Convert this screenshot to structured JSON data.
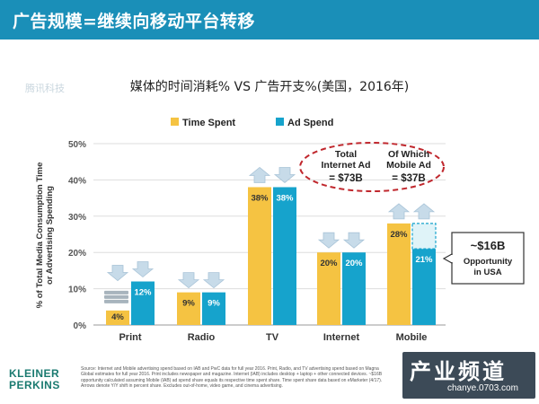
{
  "header": {
    "title": "广告规模=继续向移动平台转移"
  },
  "watermark": "腾讯科技",
  "chart_data": {
    "type": "bar",
    "title": "媒体的时间消耗% VS 广告开支%(美国，2016年)",
    "ylabel": "% of Total Media Consumption Time or Advertising Spending",
    "xlabel": "",
    "ylim": [
      0,
      50
    ],
    "yticks": [
      "0%",
      "10%",
      "20%",
      "30%",
      "40%",
      "50%"
    ],
    "grid": true,
    "legend_position": "top",
    "categories": [
      "Print",
      "Radio",
      "TV",
      "Internet",
      "Mobile"
    ],
    "series": [
      {
        "name": "Time Spent",
        "color": "#f5c342",
        "values": [
          4,
          9,
          38,
          20,
          28
        ],
        "labels": [
          "4%",
          "9%",
          "38%",
          "20%",
          "28%"
        ]
      },
      {
        "name": "Ad Spend",
        "color": "#16a3cc",
        "values": [
          12,
          9,
          38,
          20,
          21
        ],
        "labels": [
          "12%",
          "9%",
          "38%",
          "20%",
          "21%"
        ]
      }
    ],
    "mobile_ad_gap_to": 28,
    "yoy_arrows": {
      "time_spent": [
        "down",
        "down",
        "up",
        "down",
        "up"
      ],
      "ad_spend": [
        "down",
        "down",
        "down",
        "down",
        "up"
      ]
    },
    "annotations": {
      "total_internet_ad": "Total Internet Ad = $73B",
      "mobile_ad": "Of Which Mobile Ad = $37B",
      "opportunity": "~$16B Opportunity in USA"
    }
  },
  "footer": {
    "logo_line1": "KLEINER",
    "logo_line2": "PERKINS",
    "note": "Source: Internet and Mobile advertising spend based on IAB and PwC data for full year 2016. Print, Radio, and TV advertising spend based on Magna Global estimates for full year 2016. Print includes newspaper and magazine. Internet (IAB) includes desktop + laptop + other connected devices. ~$16B opportunity calculated assuming Mobile (IAB) ad spend share equals its respective time spent share. Time spent share data based on eMarketer (4/17). Arrows denote Y/Y shift in percent share. Excludes out-of-home, video game, and cinema advertising."
  },
  "stamp": {
    "big": "产业频道",
    "small": "chanye.0703.com"
  }
}
